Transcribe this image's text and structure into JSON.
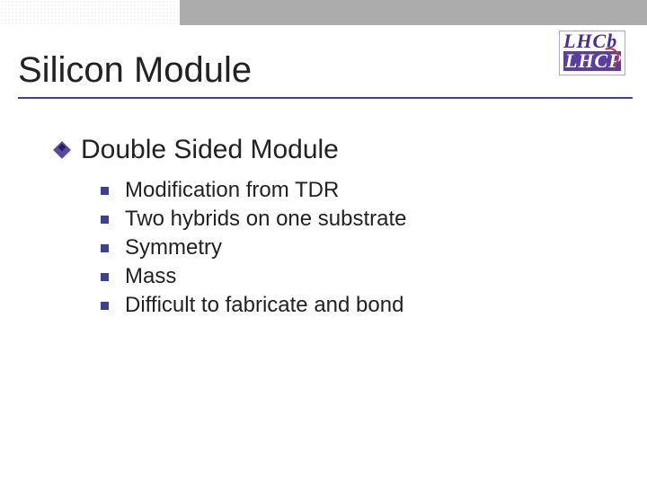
{
  "slide": {
    "title": "Silicon Module",
    "level1_heading": "Double Sided Module",
    "bullets": [
      "Modification from TDR",
      "Two hybrids on one substrate",
      "Symmetry",
      "Mass",
      "Difficult to fabricate and bond"
    ],
    "logo": {
      "line1": "LHCb",
      "line2": "LHCP"
    },
    "colors": {
      "accent": "#3f3f94",
      "topbar_solid": "#acacac",
      "topbar_dots": "#d8d8d8",
      "logo_purple": "#5a3fa0",
      "logo_red": "#cc3333",
      "text": "#222222"
    },
    "typography": {
      "title_fontsize": 40,
      "level1_fontsize": 30,
      "level2_fontsize": 24,
      "font_family": "Verdana"
    }
  }
}
